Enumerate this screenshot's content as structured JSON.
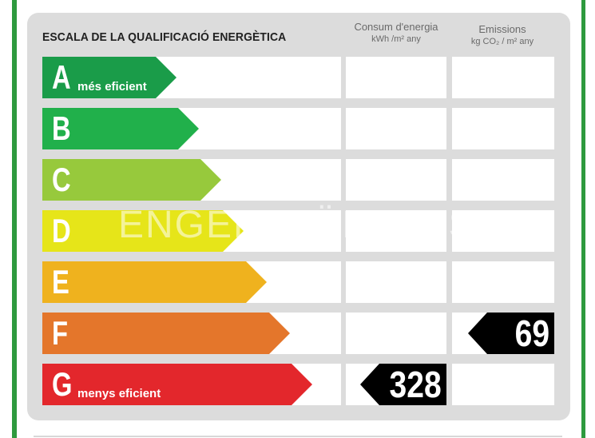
{
  "title": "ESCALA DE LA QUALIFICACIÓ ENERGÈTICA",
  "columns": {
    "energy": {
      "line1": "Consum d'energia",
      "line2": "kWh /m² any"
    },
    "emissions": {
      "line1": "Emissions",
      "line2": "kg CO₂ / m² any"
    }
  },
  "bands": [
    {
      "letter": "A",
      "label": "més eficient",
      "color": "#1a9c49"
    },
    {
      "letter": "B",
      "label": "",
      "color": "#21b04b"
    },
    {
      "letter": "C",
      "label": "",
      "color": "#97c93c"
    },
    {
      "letter": "D",
      "label": "",
      "color": "#e6e519"
    },
    {
      "letter": "E",
      "label": "",
      "color": "#efb21e"
    },
    {
      "letter": "F",
      "label": "",
      "color": "#e4762b"
    },
    {
      "letter": "G",
      "label": "menys eficient",
      "color": "#e3272c"
    }
  ],
  "ratings": {
    "energy": {
      "band": "G",
      "value": "328"
    },
    "emissions": {
      "band": "F",
      "value": "69"
    }
  },
  "watermarks": {
    "main": "ENGEL&VÖLKERS",
    "secondary": "habitaclia"
  }
}
